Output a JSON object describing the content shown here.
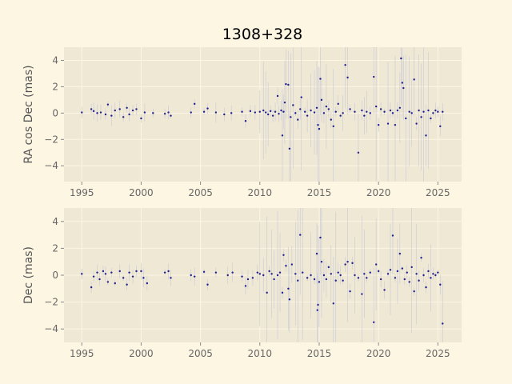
{
  "chart_data": [
    {
      "type": "scatter",
      "title": "1308+328",
      "xlabel": "",
      "ylabel": "RA cos Dec (mas)",
      "xlim": [
        1993.5,
        2027.0
      ],
      "ylim": [
        -5.2,
        5.0
      ],
      "xticks": [
        1995,
        2000,
        2005,
        2010,
        2015,
        2020,
        2025
      ],
      "yticks": [
        -4,
        -2,
        0,
        2,
        4
      ],
      "grid": true,
      "series": [
        {
          "points": [
            [
              1995.0,
              0.05
            ],
            [
              1995.8,
              0.3
            ],
            [
              1996.0,
              0.15
            ],
            [
              1996.3,
              0.0
            ],
            [
              1996.6,
              0.05
            ],
            [
              1997.0,
              -0.1
            ],
            [
              1997.2,
              0.65
            ],
            [
              1997.5,
              -0.2
            ],
            [
              1997.8,
              0.2
            ],
            [
              1998.2,
              0.3
            ],
            [
              1998.5,
              -0.3
            ],
            [
              1998.8,
              0.4
            ],
            [
              1999.0,
              -0.1
            ],
            [
              1999.3,
              0.2
            ],
            [
              1999.6,
              0.3
            ],
            [
              2000.0,
              -0.4
            ],
            [
              2000.3,
              0.05
            ],
            [
              2001.0,
              0.0
            ],
            [
              2002.0,
              -0.05
            ],
            [
              2002.3,
              0.05
            ],
            [
              2002.5,
              -0.2
            ],
            [
              2004.2,
              0.05
            ],
            [
              2004.5,
              0.7
            ],
            [
              2005.3,
              0.1
            ],
            [
              2005.6,
              0.35
            ],
            [
              2006.3,
              0.05
            ],
            [
              2007.0,
              -0.1
            ],
            [
              2007.6,
              0.0
            ],
            [
              2008.5,
              0.1
            ],
            [
              2008.8,
              -0.6
            ],
            [
              2009.2,
              0.15
            ],
            [
              2009.6,
              0.05
            ],
            [
              2010.0,
              0.1
            ],
            [
              2010.3,
              0.2
            ],
            [
              2010.5,
              0.05
            ],
            [
              2010.7,
              -0.1
            ],
            [
              2010.9,
              0.15
            ],
            [
              2011.1,
              -0.2
            ],
            [
              2011.3,
              0.1
            ],
            [
              2011.5,
              1.3
            ],
            [
              2011.6,
              -0.05
            ],
            [
              2011.8,
              0.2
            ],
            [
              2011.9,
              -1.7
            ],
            [
              2012.0,
              0.1
            ],
            [
              2012.1,
              0.8
            ],
            [
              2012.2,
              2.2
            ],
            [
              2012.4,
              2.15
            ],
            [
              2012.5,
              -2.7
            ],
            [
              2012.6,
              -0.3
            ],
            [
              2012.8,
              0.6
            ],
            [
              2013.0,
              0.0
            ],
            [
              2013.2,
              -0.5
            ],
            [
              2013.4,
              0.3
            ],
            [
              2013.5,
              1.2
            ],
            [
              2013.8,
              0.1
            ],
            [
              2014.0,
              -0.2
            ],
            [
              2014.3,
              0.2
            ],
            [
              2014.6,
              0.05
            ],
            [
              2014.8,
              0.4
            ],
            [
              2014.9,
              -0.9
            ],
            [
              2015.0,
              -1.2
            ],
            [
              2015.1,
              2.6
            ],
            [
              2015.2,
              1.0
            ],
            [
              2015.4,
              0.0
            ],
            [
              2015.6,
              0.5
            ],
            [
              2015.8,
              0.3
            ],
            [
              2016.0,
              -0.5
            ],
            [
              2016.2,
              -1.0
            ],
            [
              2016.4,
              0.1
            ],
            [
              2016.6,
              0.7
            ],
            [
              2016.8,
              -0.2
            ],
            [
              2017.0,
              0.0
            ],
            [
              2017.2,
              3.65
            ],
            [
              2017.4,
              2.7
            ],
            [
              2017.6,
              0.3
            ],
            [
              2018.0,
              0.1
            ],
            [
              2018.3,
              -3.0
            ],
            [
              2018.6,
              0.2
            ],
            [
              2018.8,
              -0.2
            ],
            [
              2019.0,
              0.1
            ],
            [
              2019.3,
              0.0
            ],
            [
              2019.6,
              2.75
            ],
            [
              2019.8,
              0.5
            ],
            [
              2020.0,
              -0.9
            ],
            [
              2020.2,
              0.3
            ],
            [
              2020.5,
              0.1
            ],
            [
              2020.8,
              -0.8
            ],
            [
              2021.0,
              0.2
            ],
            [
              2021.2,
              0.0
            ],
            [
              2021.4,
              -0.9
            ],
            [
              2021.6,
              0.2
            ],
            [
              2021.8,
              0.4
            ],
            [
              2021.9,
              4.15
            ],
            [
              2022.0,
              2.3
            ],
            [
              2022.1,
              1.9
            ],
            [
              2022.3,
              -0.4
            ],
            [
              2022.6,
              0.1
            ],
            [
              2022.8,
              0.0
            ],
            [
              2023.0,
              2.55
            ],
            [
              2023.2,
              -0.8
            ],
            [
              2023.4,
              0.2
            ],
            [
              2023.6,
              -0.3
            ],
            [
              2023.8,
              0.1
            ],
            [
              2024.0,
              -1.7
            ],
            [
              2024.2,
              0.2
            ],
            [
              2024.4,
              -0.4
            ],
            [
              2024.6,
              0.0
            ],
            [
              2024.8,
              0.2
            ],
            [
              2025.0,
              0.1
            ],
            [
              2025.2,
              -1.0
            ],
            [
              2025.4,
              0.1
            ]
          ]
        }
      ]
    },
    {
      "type": "scatter",
      "title": "",
      "xlabel": "",
      "ylabel": "Dec (mas)",
      "xlim": [
        1993.5,
        2027.0
      ],
      "ylim": [
        -5.0,
        5.0
      ],
      "xticks": [
        1995,
        2000,
        2005,
        2010,
        2015,
        2020,
        2025
      ],
      "yticks": [
        -4,
        -2,
        0,
        2,
        4
      ],
      "grid": true,
      "series": [
        {
          "points": [
            [
              1995.0,
              0.1
            ],
            [
              1995.8,
              -0.9
            ],
            [
              1996.0,
              -0.1
            ],
            [
              1996.3,
              0.2
            ],
            [
              1996.5,
              -0.3
            ],
            [
              1996.8,
              0.3
            ],
            [
              1997.0,
              0.1
            ],
            [
              1997.2,
              -0.5
            ],
            [
              1997.5,
              0.2
            ],
            [
              1997.8,
              -0.6
            ],
            [
              1998.2,
              0.3
            ],
            [
              1998.5,
              -0.2
            ],
            [
              1998.8,
              -0.7
            ],
            [
              1999.0,
              0.2
            ],
            [
              1999.3,
              -0.1
            ],
            [
              1999.6,
              0.3
            ],
            [
              2000.0,
              0.3
            ],
            [
              2000.2,
              -0.2
            ],
            [
              2000.5,
              -0.6
            ],
            [
              2002.0,
              0.2
            ],
            [
              2002.3,
              0.3
            ],
            [
              2002.5,
              -0.2
            ],
            [
              2004.2,
              0.0
            ],
            [
              2004.5,
              -0.1
            ],
            [
              2005.3,
              0.25
            ],
            [
              2005.6,
              -0.7
            ],
            [
              2006.3,
              0.2
            ],
            [
              2007.3,
              0.0
            ],
            [
              2007.7,
              0.2
            ],
            [
              2008.5,
              -0.1
            ],
            [
              2008.8,
              -0.8
            ],
            [
              2009.0,
              -0.3
            ],
            [
              2009.4,
              -0.2
            ],
            [
              2009.8,
              0.2
            ],
            [
              2010.0,
              0.1
            ],
            [
              2010.3,
              0.0
            ],
            [
              2010.6,
              -1.3
            ],
            [
              2010.8,
              0.3
            ],
            [
              2011.0,
              0.1
            ],
            [
              2011.2,
              -0.3
            ],
            [
              2011.5,
              0.0
            ],
            [
              2011.7,
              0.2
            ],
            [
              2011.9,
              -1.3
            ],
            [
              2012.0,
              1.5
            ],
            [
              2012.2,
              0.7
            ],
            [
              2012.4,
              -1.0
            ],
            [
              2012.5,
              -1.8
            ],
            [
              2012.7,
              0.8
            ],
            [
              2013.0,
              0.1
            ],
            [
              2013.2,
              -0.4
            ],
            [
              2013.4,
              3.0
            ],
            [
              2013.6,
              0.2
            ],
            [
              2014.0,
              -0.2
            ],
            [
              2014.3,
              0.0
            ],
            [
              2014.6,
              -0.3
            ],
            [
              2014.8,
              1.6
            ],
            [
              2014.85,
              -2.6
            ],
            [
              2014.9,
              -2.2
            ],
            [
              2015.0,
              -0.5
            ],
            [
              2015.1,
              2.8
            ],
            [
              2015.2,
              1.0
            ],
            [
              2015.4,
              0.0
            ],
            [
              2015.6,
              -0.3
            ],
            [
              2015.8,
              0.6
            ],
            [
              2016.0,
              0.1
            ],
            [
              2016.2,
              -2.1
            ],
            [
              2016.4,
              -0.4
            ],
            [
              2016.6,
              0.2
            ],
            [
              2016.8,
              0.0
            ],
            [
              2017.0,
              -0.4
            ],
            [
              2017.2,
              0.8
            ],
            [
              2017.4,
              1.0
            ],
            [
              2017.6,
              -1.2
            ],
            [
              2017.8,
              0.9
            ],
            [
              2018.0,
              0.0
            ],
            [
              2018.3,
              -0.2
            ],
            [
              2018.6,
              -1.4
            ],
            [
              2018.8,
              0.1
            ],
            [
              2019.0,
              -0.2
            ],
            [
              2019.3,
              0.2
            ],
            [
              2019.6,
              -3.5
            ],
            [
              2019.8,
              0.8
            ],
            [
              2020.0,
              0.3
            ],
            [
              2020.2,
              -0.3
            ],
            [
              2020.5,
              -1.1
            ],
            [
              2020.8,
              0.1
            ],
            [
              2021.0,
              0.4
            ],
            [
              2021.2,
              2.95
            ],
            [
              2021.4,
              -0.2
            ],
            [
              2021.6,
              0.3
            ],
            [
              2021.8,
              1.6
            ],
            [
              2022.0,
              0.5
            ],
            [
              2022.2,
              -0.3
            ],
            [
              2022.4,
              0.2
            ],
            [
              2022.6,
              -0.5
            ],
            [
              2022.8,
              0.6
            ],
            [
              2023.0,
              -1.2
            ],
            [
              2023.2,
              0.1
            ],
            [
              2023.4,
              -0.4
            ],
            [
              2023.6,
              1.3
            ],
            [
              2023.8,
              0.0
            ],
            [
              2024.0,
              -0.9
            ],
            [
              2024.2,
              0.3
            ],
            [
              2024.4,
              -0.2
            ],
            [
              2024.6,
              0.1
            ],
            [
              2024.8,
              0.0
            ],
            [
              2025.0,
              0.2
            ],
            [
              2025.2,
              -0.7
            ],
            [
              2025.4,
              -3.6
            ]
          ]
        }
      ]
    }
  ]
}
